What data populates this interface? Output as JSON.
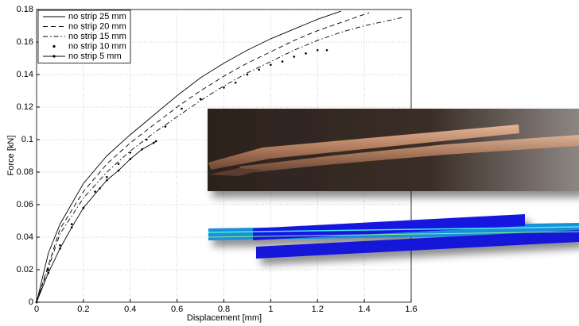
{
  "chart_data": {
    "type": "line",
    "xlabel": "Displacement [mm]",
    "ylabel": "Force [kN]",
    "xlim": [
      0,
      1.6
    ],
    "ylim": [
      0,
      0.18
    ],
    "xticks": [
      0,
      0.2,
      0.4,
      0.6,
      0.8,
      1,
      1.2,
      1.4,
      1.6
    ],
    "yticks": [
      0,
      0.02,
      0.04,
      0.06,
      0.08,
      0.1,
      0.12,
      0.14,
      0.16,
      0.18
    ],
    "grid": true,
    "legend": "upper left",
    "series": [
      {
        "name": "no strip 25 mm",
        "color": "#000000",
        "line_style": "solid",
        "marker": "none",
        "x": [
          0,
          0.05,
          0.1,
          0.2,
          0.3,
          0.4,
          0.5,
          0.6,
          0.7,
          0.8,
          0.9,
          1.0,
          1.1,
          1.2,
          1.3
        ],
        "values": [
          0,
          0.03,
          0.048,
          0.073,
          0.09,
          0.103,
          0.115,
          0.127,
          0.138,
          0.147,
          0.155,
          0.162,
          0.168,
          0.174,
          0.179
        ]
      },
      {
        "name": "no strip 20 mm",
        "color": "#000000",
        "line_style": "dashed",
        "marker": "none",
        "x": [
          0,
          0.1,
          0.2,
          0.3,
          0.4,
          0.5,
          0.6,
          0.7,
          0.8,
          0.9,
          1.0,
          1.1,
          1.2,
          1.3,
          1.42
        ],
        "values": [
          0,
          0.045,
          0.068,
          0.085,
          0.098,
          0.109,
          0.12,
          0.13,
          0.139,
          0.147,
          0.154,
          0.161,
          0.167,
          0.172,
          0.178
        ]
      },
      {
        "name": "no strip 15 mm",
        "color": "#000000",
        "line_style": "dashdot",
        "marker": "none",
        "x": [
          0,
          0.1,
          0.2,
          0.3,
          0.4,
          0.5,
          0.6,
          0.7,
          0.8,
          0.9,
          1.0,
          1.1,
          1.2,
          1.3,
          1.4,
          1.56
        ],
        "values": [
          0,
          0.042,
          0.064,
          0.08,
          0.093,
          0.104,
          0.114,
          0.124,
          0.133,
          0.141,
          0.148,
          0.155,
          0.161,
          0.166,
          0.17,
          0.175
        ]
      },
      {
        "name": "no strip 10 mm",
        "color": "#000000",
        "line_style": "none",
        "marker": "dot",
        "x": [
          0,
          0.05,
          0.1,
          0.15,
          0.2,
          0.25,
          0.3,
          0.35,
          0.4,
          0.47,
          0.55,
          0.62,
          0.7,
          0.8,
          0.85,
          0.9,
          0.95,
          1.0,
          1.05,
          1.1,
          1.15,
          1.2,
          1.24
        ],
        "values": [
          0,
          0.02,
          0.035,
          0.048,
          0.058,
          0.068,
          0.077,
          0.085,
          0.092,
          0.1,
          0.108,
          0.119,
          0.125,
          0.132,
          0.135,
          0.14,
          0.143,
          0.146,
          0.148,
          0.151,
          0.153,
          0.155,
          0.155
        ]
      },
      {
        "name": "no strip 5 mm",
        "color": "#000000",
        "line_style": "solid",
        "marker": "dot",
        "x": [
          0,
          0.05,
          0.1,
          0.15,
          0.2,
          0.27,
          0.3,
          0.35,
          0.4,
          0.45,
          0.5,
          0.51
        ],
        "values": [
          0,
          0.018,
          0.033,
          0.046,
          0.058,
          0.07,
          0.075,
          0.081,
          0.088,
          0.094,
          0.098,
          0.099
        ]
      }
    ]
  }
}
